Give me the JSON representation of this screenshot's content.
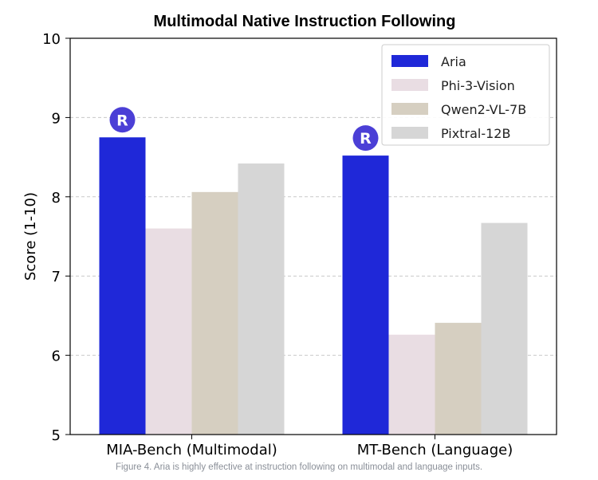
{
  "figure": {
    "caption": "Figure 4. Aria is highly effective at instruction following on multimodal and language inputs."
  },
  "chart_data": {
    "type": "bar",
    "title": "Multimodal Native Instruction Following",
    "xlabel": "",
    "ylabel": "Score (1-10)",
    "ylim": [
      5,
      10
    ],
    "yticks": [
      5,
      6,
      7,
      8,
      9,
      10
    ],
    "grid": true,
    "legend_position": "top-right",
    "categories": [
      "MIA-Bench (Multimodal)",
      "MT-Bench (Language)"
    ],
    "series": [
      {
        "name": "Aria",
        "color": "#1f28d8",
        "values": [
          8.75,
          8.52
        ]
      },
      {
        "name": "Phi-3-Vision",
        "color": "#e9dde3",
        "values": [
          7.6,
          6.26
        ]
      },
      {
        "name": "Qwen2-VL-7B",
        "color": "#d6cfc1",
        "values": [
          8.06,
          6.41
        ]
      },
      {
        "name": "Pixtral-12B",
        "color": "#d6d6d6",
        "values": [
          8.42,
          7.67
        ]
      }
    ],
    "marker": {
      "series": "Aria",
      "icon": "aria-logo-icon",
      "color": "#4b3fd6"
    }
  }
}
